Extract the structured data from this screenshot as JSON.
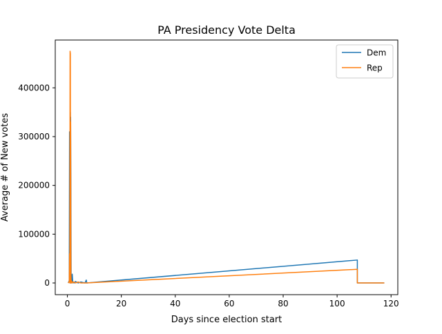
{
  "chart_data": {
    "type": "line",
    "title": "PA Presidency Vote Delta",
    "xlabel": "Days since election start",
    "ylabel": "Average # of New votes",
    "xlim": [
      -4.5,
      122.5
    ],
    "ylim": [
      -24000,
      498000
    ],
    "x_ticks": [
      0,
      20,
      40,
      60,
      80,
      100,
      120
    ],
    "y_ticks": [
      0,
      100000,
      200000,
      300000,
      400000
    ],
    "grid": false,
    "legend_position": "top-right",
    "series": [
      {
        "name": "Dem",
        "color": "#1f77b4",
        "x": [
          0.3,
          0.7,
          0.8,
          0.9,
          1.0,
          1.1,
          1.15,
          1.2,
          1.3,
          1.4,
          1.45,
          1.5,
          1.6,
          1.8,
          2.0,
          2.2,
          2.5,
          3.0,
          4.0,
          5.0,
          6.5,
          7.0,
          7.2,
          107.5,
          107.5,
          117.5
        ],
        "y": [
          0,
          5000,
          310000,
          0,
          20000,
          350000,
          0,
          340000,
          210000,
          0,
          15000,
          0,
          2000,
          18000,
          0,
          2000,
          0,
          3000,
          0,
          2000,
          0,
          6000,
          0,
          47000,
          0,
          0
        ]
      },
      {
        "name": "Rep",
        "color": "#ff7f0e",
        "x": [
          0.3,
          0.7,
          0.8,
          0.9,
          1.0,
          1.1,
          1.15,
          1.2,
          1.3,
          1.4,
          1.45,
          1.5,
          1.6,
          1.8,
          2.0,
          2.5,
          3.0,
          4.0,
          5.0,
          7.0,
          107.5,
          107.5,
          117.5
        ],
        "y": [
          0,
          3000,
          60000,
          0,
          475000,
          470000,
          0,
          330000,
          20000,
          0,
          5000,
          0,
          2000,
          3000,
          0,
          2000,
          0,
          2000,
          0,
          0,
          28000,
          0,
          0
        ]
      }
    ]
  }
}
